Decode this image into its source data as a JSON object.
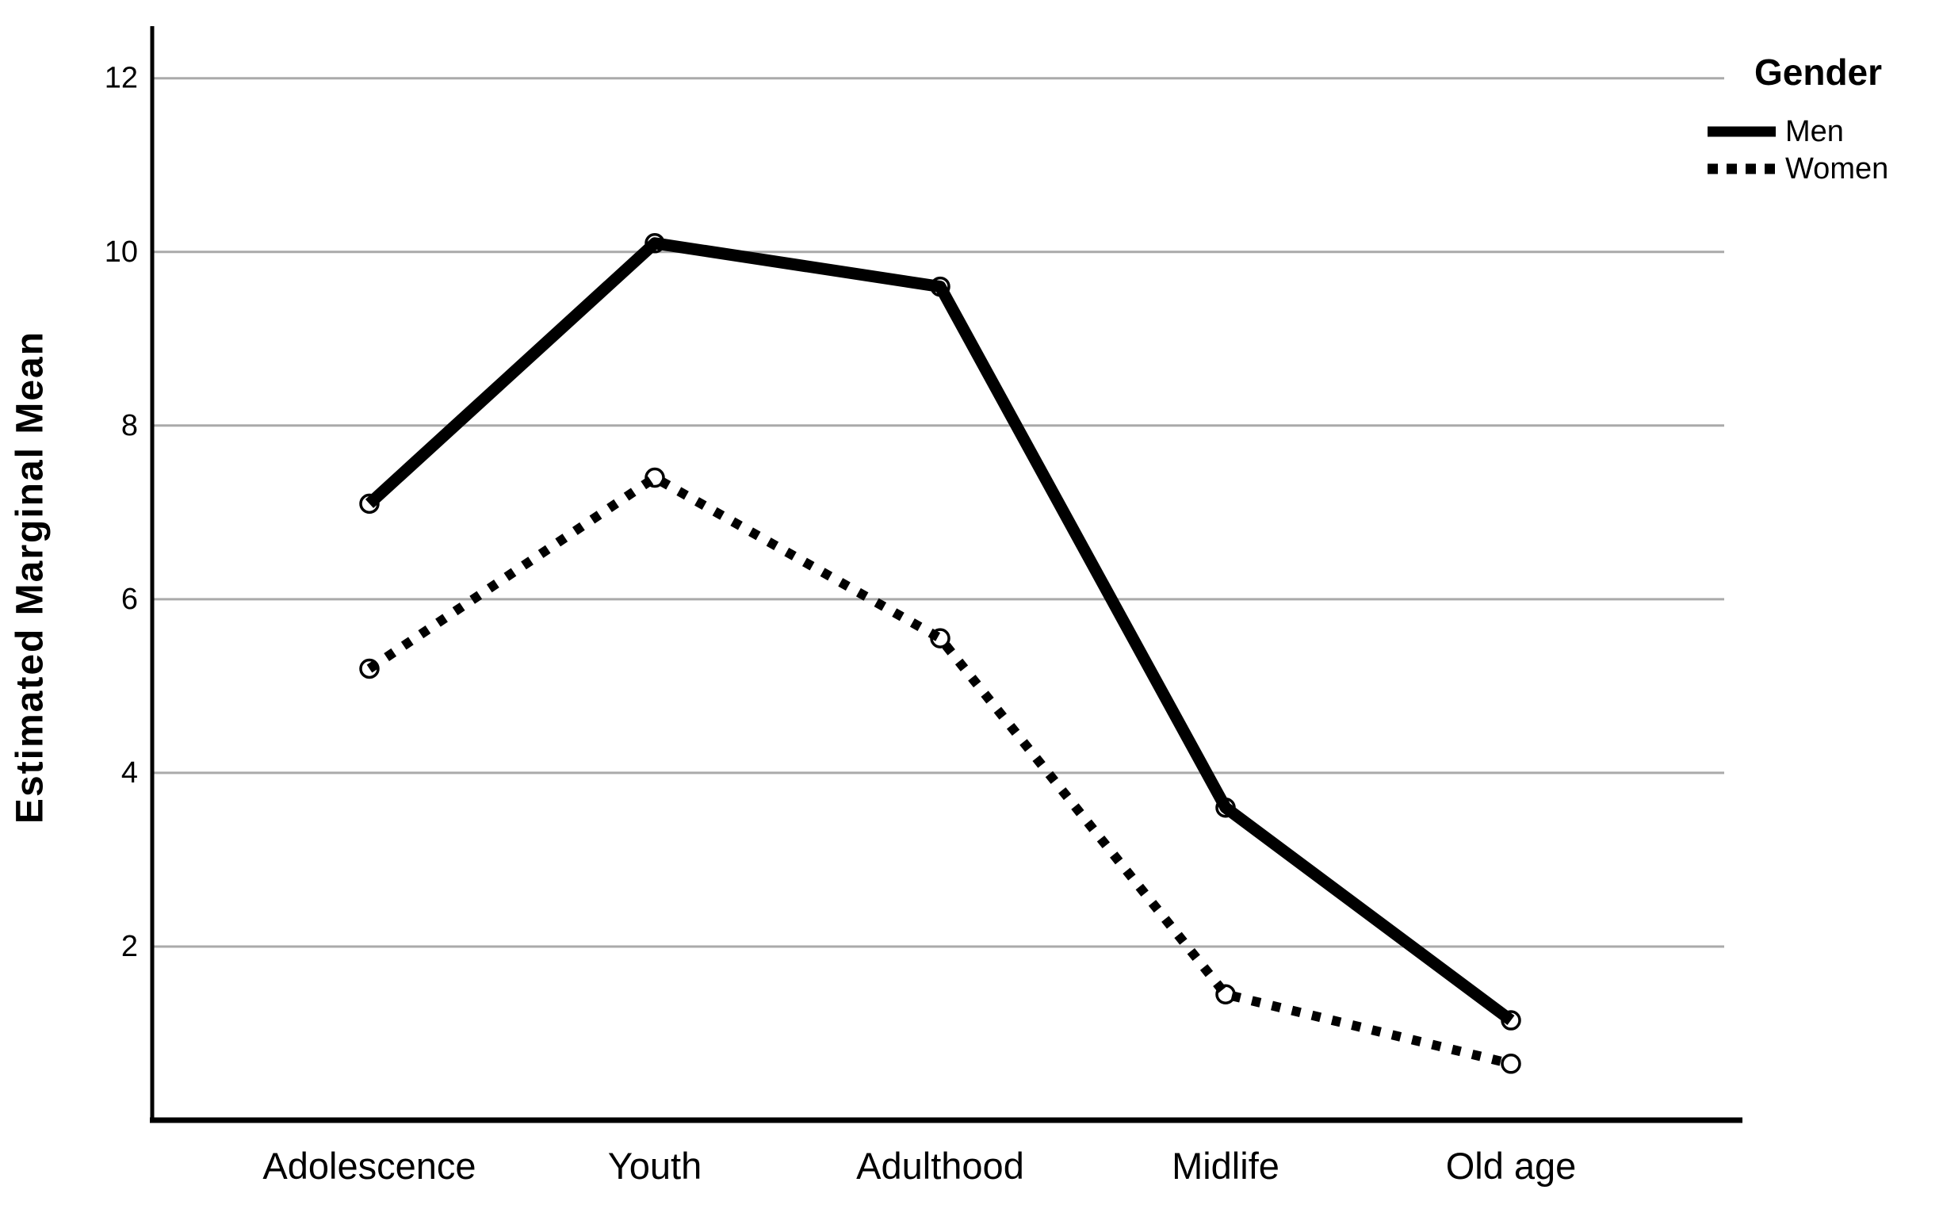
{
  "chart_data": {
    "type": "line",
    "title": "",
    "ylabel": "Estimated Marginal Mean",
    "xlabel": "",
    "categories": [
      "Adolescence",
      "Youth",
      "Adulthood",
      "Midlife",
      "Old age"
    ],
    "series": [
      {
        "name": "Men",
        "line_style": "solid",
        "color": "#000000",
        "marker": "open-circle",
        "values": [
          7.1,
          10.1,
          9.6,
          3.6,
          1.15
        ]
      },
      {
        "name": "Women",
        "line_style": "dotted",
        "color": "#000000",
        "marker": "open-circle",
        "values": [
          5.2,
          7.4,
          5.55,
          1.45,
          0.65
        ]
      }
    ],
    "y_ticks": [
      2,
      4,
      6,
      8,
      10,
      12
    ],
    "ylim": [
      0,
      12.6
    ],
    "grid": "horizontal",
    "grid_color": "#aaaaaa",
    "background_color": "#ffffff",
    "axis_color": "#000000",
    "legend_title": "Gender",
    "legend_position": "top-right"
  }
}
